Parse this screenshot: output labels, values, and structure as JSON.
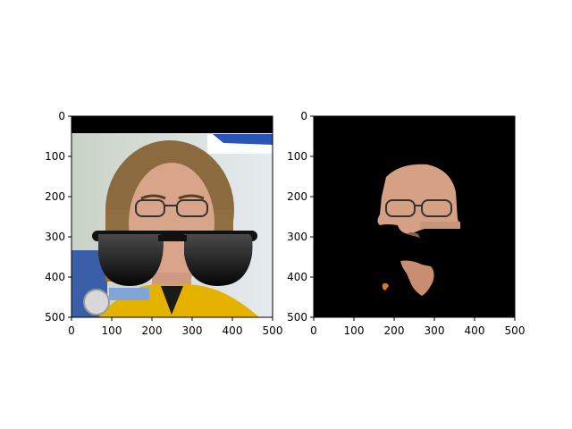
{
  "figure": {
    "background": "#ffffff",
    "mask_color": "#000000",
    "panel_descriptions": [
      "face photo with sunglasses overlay",
      "segmented face with black background"
    ]
  },
  "chart_data": [
    {
      "type": "image",
      "title": "",
      "xlabel": "",
      "ylabel": "",
      "xlim": [
        0,
        500
      ],
      "ylim": [
        500,
        0
      ],
      "xticks": [
        0,
        100,
        200,
        300,
        400,
        500
      ],
      "yticks": [
        0,
        100,
        200,
        300,
        400,
        500
      ],
      "xtick_labels": [
        "0",
        "100",
        "200",
        "300",
        "400",
        "500"
      ],
      "ytick_labels": [
        "0",
        "100",
        "200",
        "300",
        "400",
        "500"
      ]
    },
    {
      "type": "image",
      "title": "",
      "xlabel": "",
      "ylabel": "",
      "xlim": [
        0,
        500
      ],
      "ylim": [
        500,
        0
      ],
      "xticks": [
        0,
        100,
        200,
        300,
        400,
        500
      ],
      "yticks": [
        0,
        100,
        200,
        300,
        400,
        500
      ],
      "xtick_labels": [
        "0",
        "100",
        "200",
        "300",
        "400",
        "500"
      ],
      "ytick_labels": [
        "0",
        "100",
        "200",
        "300",
        "400",
        "500"
      ]
    }
  ]
}
